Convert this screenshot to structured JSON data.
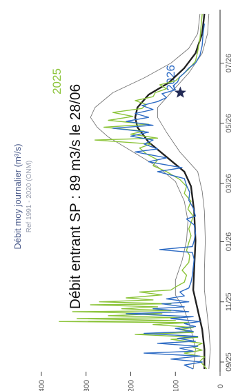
{
  "chart_data": {
    "type": "line",
    "title": "Débit moy journalier (m³/s)",
    "subtitle": "Ref 1991 - 2020 (ONM)",
    "xlabel": "",
    "ylabel": "",
    "ylim": [
      0,
      420
    ],
    "yticks": [
      0,
      100,
      200,
      300,
      400
    ],
    "xlim": [
      0,
      360
    ],
    "xticks": [
      {
        "x": 7,
        "label": "09/25"
      },
      {
        "x": 68,
        "label": "11/25"
      },
      {
        "x": 129,
        "label": "01/26"
      },
      {
        "x": 188,
        "label": "03/26"
      },
      {
        "x": 249,
        "label": "05/26"
      },
      {
        "x": 310,
        "label": "07/26"
      }
    ],
    "grid": false,
    "series": [
      {
        "name": "",
        "color": "#777777",
        "style": "thin",
        "points": [
          [
            0,
            60
          ],
          [
            20,
            55
          ],
          [
            40,
            65
          ],
          [
            60,
            80
          ],
          [
            75,
            100
          ],
          [
            90,
            100
          ],
          [
            110,
            85
          ],
          [
            130,
            75
          ],
          [
            150,
            72
          ],
          [
            170,
            80
          ],
          [
            190,
            100
          ],
          [
            205,
            140
          ],
          [
            220,
            195
          ],
          [
            235,
            250
          ],
          [
            245,
            275
          ],
          [
            255,
            290
          ],
          [
            265,
            280
          ],
          [
            280,
            240
          ],
          [
            295,
            170
          ],
          [
            310,
            110
          ],
          [
            325,
            70
          ],
          [
            340,
            50
          ],
          [
            360,
            45
          ]
        ]
      },
      {
        "name": "",
        "color": "#777777",
        "style": "thin",
        "points": [
          [
            0,
            25
          ],
          [
            20,
            22
          ],
          [
            40,
            25
          ],
          [
            60,
            30
          ],
          [
            80,
            35
          ],
          [
            100,
            35
          ],
          [
            130,
            33
          ],
          [
            160,
            35
          ],
          [
            180,
            40
          ],
          [
            200,
            50
          ],
          [
            220,
            90
          ],
          [
            240,
            120
          ],
          [
            255,
            140
          ],
          [
            265,
            140
          ],
          [
            280,
            110
          ],
          [
            300,
            70
          ],
          [
            320,
            40
          ],
          [
            340,
            28
          ],
          [
            360,
            25
          ]
        ]
      },
      {
        "name": "",
        "color": "#222222",
        "style": "thick",
        "points": [
          [
            0,
            35
          ],
          [
            20,
            35
          ],
          [
            40,
            40
          ],
          [
            60,
            50
          ],
          [
            80,
            60
          ],
          [
            100,
            58
          ],
          [
            130,
            55
          ],
          [
            160,
            58
          ],
          [
            185,
            65
          ],
          [
            200,
            80
          ],
          [
            215,
            120
          ],
          [
            230,
            160
          ],
          [
            245,
            185
          ],
          [
            255,
            190
          ],
          [
            265,
            185
          ],
          [
            278,
            160
          ],
          [
            290,
            115
          ],
          [
            305,
            80
          ],
          [
            320,
            55
          ],
          [
            340,
            40
          ],
          [
            360,
            35
          ]
        ]
      },
      {
        "name": "2025",
        "color": "#8cc43a",
        "style": "normal",
        "points": [
          [
            0,
            30
          ],
          [
            8,
            45
          ],
          [
            12,
            35
          ],
          [
            16,
            80
          ],
          [
            19,
            40
          ],
          [
            22,
            60
          ],
          [
            26,
            40
          ],
          [
            30,
            110
          ],
          [
            32,
            50
          ],
          [
            35,
            190
          ],
          [
            37,
            60
          ],
          [
            40,
            90
          ],
          [
            42,
            60
          ],
          [
            45,
            150
          ],
          [
            47,
            70
          ],
          [
            48,
            360
          ],
          [
            49,
            100
          ],
          [
            51,
            320
          ],
          [
            52,
            90
          ],
          [
            54,
            250
          ],
          [
            56,
            130
          ],
          [
            58,
            330
          ],
          [
            59,
            110
          ],
          [
            61,
            220
          ],
          [
            63,
            140
          ],
          [
            65,
            290
          ],
          [
            66,
            110
          ],
          [
            68,
            270
          ],
          [
            70,
            150
          ],
          [
            72,
            210
          ],
          [
            75,
            130
          ],
          [
            78,
            180
          ],
          [
            80,
            110
          ],
          [
            83,
            100
          ],
          [
            88,
            80
          ],
          [
            95,
            75
          ],
          [
            100,
            85
          ],
          [
            108,
            70
          ],
          [
            115,
            68
          ],
          [
            120,
            75
          ],
          [
            128,
            70
          ],
          [
            135,
            65
          ],
          [
            142,
            70
          ],
          [
            148,
            65
          ],
          [
            155,
            60
          ],
          [
            162,
            72
          ],
          [
            170,
            65
          ],
          [
            178,
            80
          ],
          [
            185,
            75
          ],
          [
            192,
            90
          ],
          [
            200,
            120
          ],
          [
            206,
            150
          ],
          [
            212,
            140
          ],
          [
            218,
            165
          ],
          [
            224,
            180
          ],
          [
            228,
            155
          ],
          [
            232,
            280
          ],
          [
            234,
            140
          ],
          [
            238,
            200
          ],
          [
            241,
            170
          ],
          [
            245,
            260
          ],
          [
            248,
            160
          ],
          [
            252,
            250
          ],
          [
            256,
            195
          ],
          [
            260,
            240
          ],
          [
            264,
            175
          ],
          [
            268,
            165
          ],
          [
            272,
            190
          ],
          [
            276,
            150
          ],
          [
            280,
            145
          ],
          [
            284,
            120
          ],
          [
            288,
            135
          ],
          [
            292,
            100
          ],
          [
            298,
            85
          ],
          [
            304,
            70
          ],
          [
            312,
            55
          ],
          [
            322,
            50
          ],
          [
            335,
            45
          ],
          [
            350,
            42
          ],
          [
            360,
            40
          ]
        ]
      },
      {
        "name": "2026",
        "color": "#2d6bc4",
        "style": "normal",
        "points": [
          [
            0,
            60
          ],
          [
            4,
            80
          ],
          [
            7,
            40
          ],
          [
            10,
            110
          ],
          [
            13,
            45
          ],
          [
            16,
            170
          ],
          [
            18,
            60
          ],
          [
            21,
            90
          ],
          [
            23,
            50
          ],
          [
            26,
            140
          ],
          [
            28,
            55
          ],
          [
            31,
            95
          ],
          [
            33,
            50
          ],
          [
            36,
            170
          ],
          [
            38,
            60
          ],
          [
            41,
            100
          ],
          [
            43,
            55
          ],
          [
            46,
            80
          ],
          [
            48,
            45
          ],
          [
            51,
            110
          ],
          [
            53,
            60
          ],
          [
            56,
            210
          ],
          [
            58,
            70
          ],
          [
            61,
            150
          ],
          [
            63,
            80
          ],
          [
            66,
            130
          ],
          [
            68,
            70
          ],
          [
            71,
            120
          ],
          [
            74,
            80
          ],
          [
            78,
            90
          ],
          [
            82,
            70
          ],
          [
            88,
            65
          ],
          [
            95,
            62
          ],
          [
            103,
            60
          ],
          [
            111,
            58
          ],
          [
            118,
            62
          ],
          [
            121,
            135
          ],
          [
            124,
            62
          ],
          [
            130,
            58
          ],
          [
            138,
            55
          ],
          [
            146,
            58
          ],
          [
            152,
            75
          ],
          [
            155,
            55
          ],
          [
            163,
            60
          ],
          [
            171,
            70
          ],
          [
            179,
            68
          ],
          [
            186,
            75
          ],
          [
            193,
            80
          ],
          [
            200,
            140
          ],
          [
            204,
            85
          ],
          [
            210,
            160
          ],
          [
            214,
            120
          ],
          [
            220,
            190
          ],
          [
            223,
            140
          ],
          [
            228,
            170
          ],
          [
            232,
            150
          ],
          [
            236,
            200
          ],
          [
            240,
            160
          ],
          [
            244,
            240
          ],
          [
            247,
            150
          ],
          [
            251,
            210
          ],
          [
            255,
            160
          ],
          [
            259,
            190
          ],
          [
            263,
            150
          ],
          [
            267,
            175
          ],
          [
            271,
            140
          ],
          [
            275,
            120
          ],
          [
            279,
            130
          ],
          [
            283,
            100
          ],
          [
            287,
            105
          ],
          [
            291,
            95
          ],
          [
            296,
            90
          ],
          [
            300,
            80
          ],
          [
            305,
            70
          ],
          [
            310,
            55
          ],
          [
            318,
            45
          ],
          [
            328,
            40
          ],
          [
            340,
            38
          ],
          [
            350,
            35
          ]
        ]
      }
    ],
    "marker": {
      "label": "",
      "x": 280,
      "y": 89,
      "shape": "star",
      "color": "#222a55"
    },
    "annotations": [
      {
        "text": "Débit entrant SP : 89 m3/s le 28/06"
      }
    ],
    "series_labels": [
      {
        "series": "2025",
        "text": "2025"
      },
      {
        "series": "2026",
        "text": "2026"
      }
    ]
  }
}
